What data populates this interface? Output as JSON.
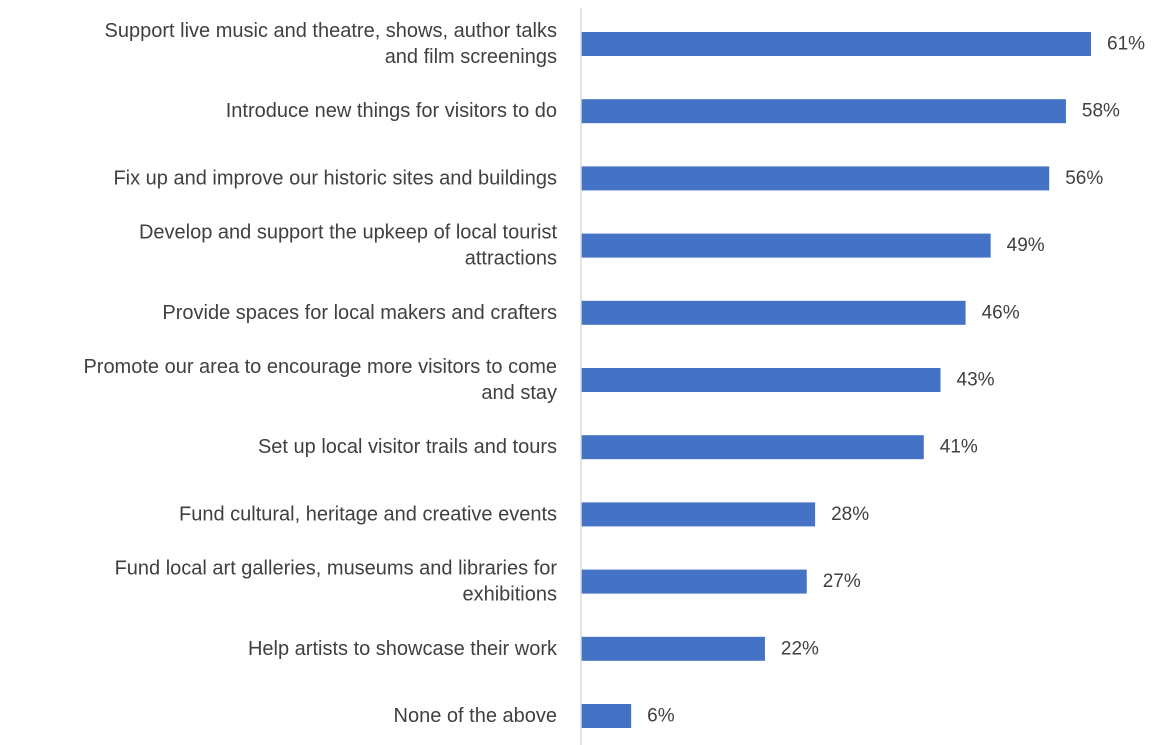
{
  "chart_data": {
    "type": "bar",
    "orientation": "horizontal",
    "title": "",
    "xlabel": "",
    "ylabel": "",
    "grid": false,
    "legend": "none",
    "xlim": [
      0,
      70
    ],
    "value_suffix": "%",
    "bar_color": "#4472C4",
    "categories": [
      "Support live music and theatre, shows, author talks and film screenings",
      "Introduce new things for visitors to do",
      "Fix up and improve our historic sites and buildings",
      "Develop and support the upkeep of local tourist attractions",
      "Provide spaces for local makers and crafters",
      "Promote our area to encourage more visitors to come and stay",
      "Set up local visitor trails and tours",
      "Fund cultural, heritage and creative events",
      "Fund local art galleries, museums and libraries for exhibitions",
      "Help artists to showcase their work",
      "None of the above"
    ],
    "label_lines": [
      [
        "Support live music and theatre, shows, author talks",
        "and film screenings"
      ],
      [
        "Introduce new things for visitors to do"
      ],
      [
        "Fix up and improve our historic sites and buildings"
      ],
      [
        "Develop and support the upkeep of local tourist",
        "attractions"
      ],
      [
        "Provide spaces for local makers and crafters"
      ],
      [
        "Promote our area to encourage more visitors to come",
        "and stay"
      ],
      [
        "Set up local visitor trails and tours"
      ],
      [
        "Fund cultural, heritage and creative events"
      ],
      [
        "Fund local art galleries, museums and libraries for",
        "exhibitions"
      ],
      [
        "Help artists to showcase their work"
      ],
      [
        "None of the above"
      ]
    ],
    "values": [
      61,
      58,
      56,
      49,
      46,
      43,
      41,
      28,
      27,
      22,
      6
    ],
    "value_labels": [
      "61%",
      "58%",
      "56%",
      "49%",
      "46%",
      "43%",
      "41%",
      "28%",
      "27%",
      "22%",
      "6%"
    ]
  }
}
